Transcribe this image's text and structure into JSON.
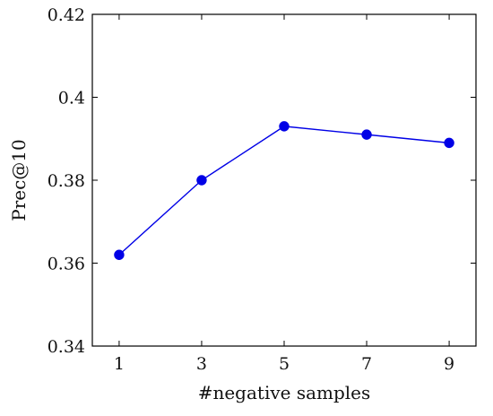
{
  "chart_data": {
    "type": "line",
    "title": "",
    "xlabel": "#negative samples",
    "ylabel": "Prec@10",
    "x": [
      1,
      3,
      5,
      7,
      9
    ],
    "series": [
      {
        "values": [
          0.362,
          0.38,
          0.393,
          0.391,
          0.389
        ],
        "color": "#0000e6"
      }
    ],
    "xlim": [
      0.35,
      9.65
    ],
    "ylim": [
      0.34,
      0.42
    ],
    "x_ticks": [
      "1",
      "3",
      "5",
      "7",
      "9"
    ],
    "y_ticks": [
      "0.34",
      "0.36",
      "0.38",
      "0.4",
      "0.42"
    ],
    "grid": false,
    "legend": "none"
  }
}
